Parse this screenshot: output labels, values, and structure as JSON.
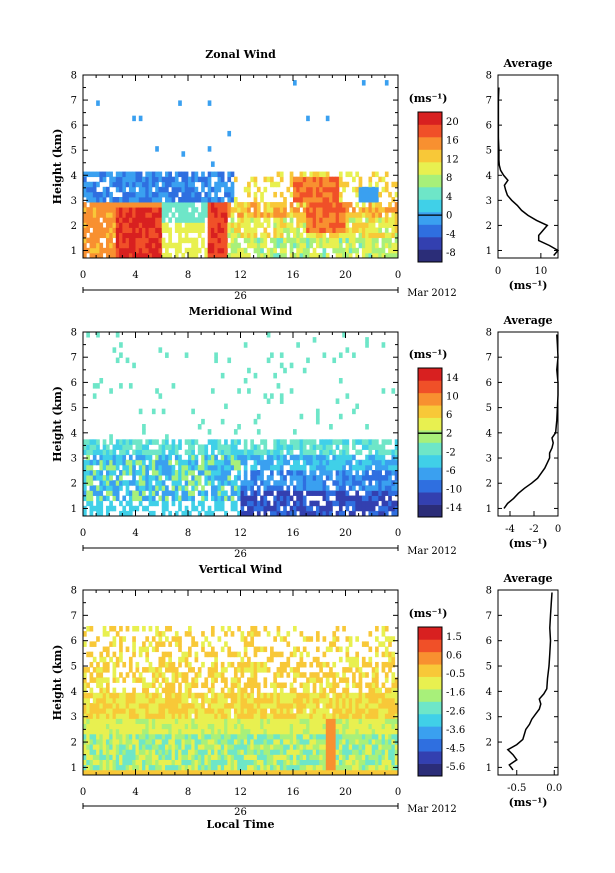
{
  "figure": {
    "month_label": "Mar 2012",
    "date_label": "26",
    "local_time_label": "Local Time",
    "ylabel": "Height (km)",
    "unit": "(ms⁻¹)",
    "average_title": "Average"
  },
  "colors": {
    "colormap": [
      "#2b2d78",
      "#3340b0",
      "#2f6fe0",
      "#3aa0f0",
      "#40d0e8",
      "#6ee6c8",
      "#a8f07a",
      "#e8f050",
      "#f8c838",
      "#f89030",
      "#f05028",
      "#d82020"
    ]
  },
  "chart_data": [
    {
      "type": "heatmap",
      "title": "Zonal Wind",
      "xlabel": "",
      "ylabel": "Height (km)",
      "x_ticks": [
        "0",
        "4",
        "8",
        "12",
        "16",
        "20",
        "0"
      ],
      "y_ticks": [
        "1",
        "2",
        "3",
        "4",
        "5",
        "6",
        "7",
        "8"
      ],
      "xlim": [
        0,
        24
      ],
      "ylim": [
        0.7,
        8.0
      ],
      "colorbar": {
        "ticks": [
          "20",
          "16",
          "12",
          "8",
          "4",
          "0",
          "-4",
          "-8"
        ],
        "min": -10,
        "max": 22,
        "line_at": "0",
        "unit": "(ms⁻¹)"
      },
      "date_label": "26",
      "month_label": "Mar 2012",
      "average": {
        "title": "Average",
        "x_ticks": [
          "0",
          "10"
        ],
        "xlim": [
          0,
          14
        ],
        "unit": "(ms⁻¹)",
        "profile_heights": [
          0.8,
          1.0,
          1.2,
          1.4,
          1.6,
          1.8,
          2.0,
          2.2,
          2.4,
          2.6,
          2.8,
          3.0,
          3.2,
          3.4,
          3.6,
          3.8,
          4.0,
          4.2,
          4.4,
          4.6,
          5.0,
          5.5,
          6.0,
          6.5,
          7.0,
          7.5
        ],
        "profile_values": [
          13,
          14,
          12,
          9.5,
          9.5,
          10.5,
          11.5,
          9,
          7,
          5.5,
          4.5,
          3.2,
          2.2,
          1.8,
          1.5,
          2.3,
          1.3,
          0.6,
          0.3,
          0.2,
          0.2,
          0.1,
          0.1,
          0.1,
          0.1,
          0.2
        ]
      }
    },
    {
      "type": "heatmap",
      "title": "Meridional Wind",
      "xlabel": "",
      "ylabel": "Height (km)",
      "x_ticks": [
        "0",
        "4",
        "8",
        "12",
        "16",
        "20",
        "0"
      ],
      "y_ticks": [
        "1",
        "2",
        "3",
        "4",
        "5",
        "6",
        "7",
        "8"
      ],
      "xlim": [
        0,
        24
      ],
      "ylim": [
        0.7,
        8.0
      ],
      "colorbar": {
        "ticks": [
          "14",
          "10",
          "6",
          "2",
          "-2",
          "-6",
          "-10",
          "-14"
        ],
        "min": -16,
        "max": 16,
        "line_at": "2",
        "unit": "(ms⁻¹)"
      },
      "date_label": "26",
      "month_label": "Mar 2012",
      "average": {
        "title": "Average",
        "x_ticks": [
          "-4",
          "-2",
          "0"
        ],
        "xlim": [
          -5,
          0
        ],
        "unit": "(ms⁻¹)",
        "profile_heights": [
          1.0,
          1.2,
          1.4,
          1.6,
          1.8,
          2.0,
          2.2,
          2.4,
          2.6,
          2.8,
          3.0,
          3.2,
          3.4,
          3.6,
          3.8,
          4.0,
          4.5,
          5.0,
          5.5,
          6.0,
          6.5,
          7.0,
          7.5,
          7.9
        ],
        "profile_values": [
          -4.5,
          -4.2,
          -3.7,
          -3.3,
          -2.8,
          -2.2,
          -1.7,
          -1.4,
          -1.1,
          -0.9,
          -0.7,
          -0.7,
          -0.5,
          -0.4,
          -0.5,
          -0.2,
          -0.1,
          -0.05,
          0,
          0,
          -0.1,
          0,
          -0.05,
          -0.1
        ]
      }
    },
    {
      "type": "heatmap",
      "title": "Vertical Wind",
      "xlabel": "Local Time",
      "ylabel": "Height (km)",
      "x_ticks": [
        "0",
        "4",
        "8",
        "12",
        "16",
        "20",
        "0"
      ],
      "y_ticks": [
        "1",
        "2",
        "3",
        "4",
        "5",
        "6",
        "7",
        "8"
      ],
      "xlim": [
        0,
        24
      ],
      "ylim": [
        0.7,
        8.0
      ],
      "colorbar": {
        "ticks": [
          "1.5",
          "0.6",
          "-0.5",
          "-1.6",
          "-2.6",
          "-3.6",
          "-4.5",
          "-5.6"
        ],
        "min": -6,
        "max": 2,
        "line_at": "",
        "unit": "(ms⁻¹)"
      },
      "date_label": "26",
      "month_label": "Mar 2012",
      "average": {
        "title": "Average",
        "x_ticks": [
          "-0.5",
          "0.0"
        ],
        "xlim": [
          -0.75,
          0.05
        ],
        "unit": "(ms⁻¹)",
        "profile_heights": [
          0.9,
          1.1,
          1.3,
          1.5,
          1.7,
          1.9,
          2.1,
          2.3,
          2.5,
          2.7,
          2.9,
          3.1,
          3.3,
          3.5,
          3.7,
          3.9,
          4.1,
          4.5,
          5.0,
          5.5,
          6.0,
          6.5,
          7.0,
          7.5,
          7.9
        ],
        "profile_values": [
          -0.55,
          -0.6,
          -0.5,
          -0.55,
          -0.62,
          -0.5,
          -0.42,
          -0.4,
          -0.38,
          -0.33,
          -0.3,
          -0.25,
          -0.2,
          -0.18,
          -0.2,
          -0.14,
          -0.1,
          -0.09,
          -0.07,
          -0.06,
          -0.05,
          -0.06,
          -0.05,
          -0.04,
          -0.03
        ]
      }
    }
  ]
}
